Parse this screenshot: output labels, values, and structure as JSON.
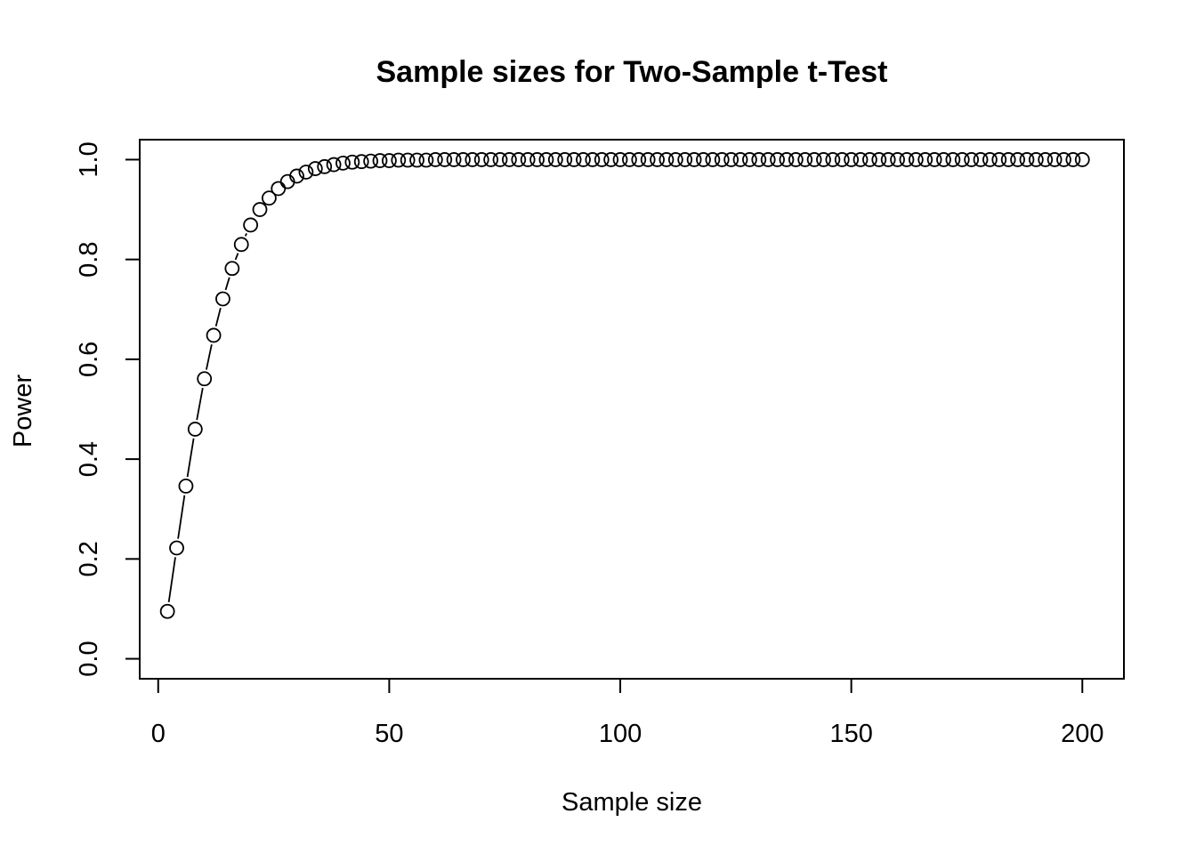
{
  "chart_data": {
    "type": "scatter",
    "title": "Sample sizes for Two-Sample t-Test",
    "xlabel": "Sample size",
    "ylabel": "Power",
    "xlim": [
      -4,
      209
    ],
    "ylim": [
      -0.04,
      1.04
    ],
    "x_ticks": [
      0,
      50,
      100,
      150,
      200
    ],
    "y_ticks": [
      0.0,
      0.2,
      0.4,
      0.6,
      0.8,
      1.0
    ],
    "x_tick_labels": [
      "0",
      "50",
      "100",
      "150",
      "200"
    ],
    "y_tick_labels": [
      "0.0",
      "0.2",
      "0.4",
      "0.6",
      "0.8",
      "1.0"
    ],
    "grid": false,
    "marker": "open-circle",
    "connected": true,
    "x": [
      2,
      4,
      6,
      8,
      10,
      12,
      14,
      16,
      18,
      20,
      22,
      24,
      26,
      28,
      30,
      32,
      34,
      36,
      38,
      40,
      42,
      44,
      46,
      48,
      50,
      52,
      54,
      56,
      58,
      60,
      62,
      64,
      66,
      68,
      70,
      72,
      74,
      76,
      78,
      80,
      82,
      84,
      86,
      88,
      90,
      92,
      94,
      96,
      98,
      100,
      102,
      104,
      106,
      108,
      110,
      112,
      114,
      116,
      118,
      120,
      122,
      124,
      126,
      128,
      130,
      132,
      134,
      136,
      138,
      140,
      142,
      144,
      146,
      148,
      150,
      152,
      154,
      156,
      158,
      160,
      162,
      164,
      166,
      168,
      170,
      172,
      174,
      176,
      178,
      180,
      182,
      184,
      186,
      188,
      190,
      192,
      194,
      196,
      198,
      200
    ],
    "y": [
      0.095,
      0.222,
      0.346,
      0.46,
      0.561,
      0.648,
      0.721,
      0.782,
      0.83,
      0.869,
      0.9,
      0.923,
      0.942,
      0.956,
      0.967,
      0.975,
      0.982,
      0.986,
      0.99,
      0.993,
      0.995,
      0.996,
      0.997,
      0.998,
      0.998,
      0.999,
      0.999,
      0.999,
      0.999,
      1,
      1,
      1,
      1,
      1,
      1,
      1,
      1,
      1,
      1,
      1,
      1,
      1,
      1,
      1,
      1,
      1,
      1,
      1,
      1,
      1,
      1,
      1,
      1,
      1,
      1,
      1,
      1,
      1,
      1,
      1,
      1,
      1,
      1,
      1,
      1,
      1,
      1,
      1,
      1,
      1,
      1,
      1,
      1,
      1,
      1,
      1,
      1,
      1,
      1,
      1,
      1,
      1,
      1,
      1,
      1,
      1,
      1,
      1,
      1,
      1,
      1,
      1,
      1,
      1,
      1,
      1,
      1,
      1,
      1,
      1
    ]
  }
}
